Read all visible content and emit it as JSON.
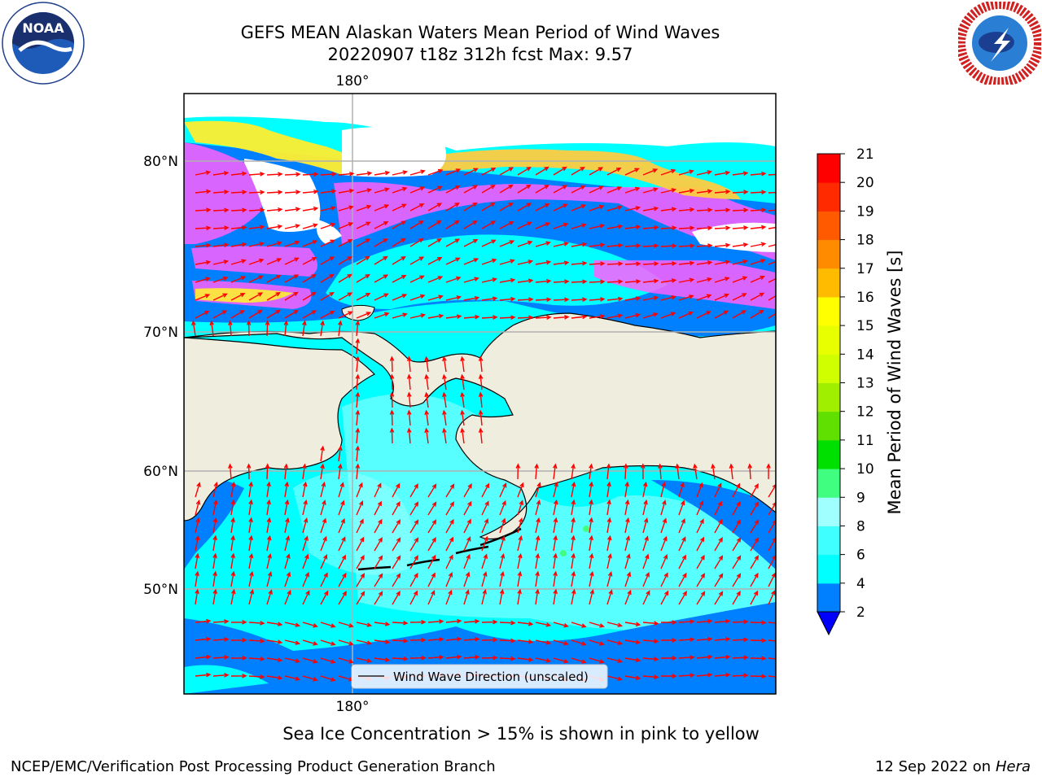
{
  "title_line1": "GEFS MEAN Alaskan Waters Mean Period of Wind Waves",
  "title_line2": "20220907 t18z 312h fcst   Max: 9.57",
  "map": {
    "lon_top_label": "180°",
    "lon_bottom_label": "180°",
    "lat_labels": [
      "80°N",
      "70°N",
      "60°N",
      "50°N"
    ],
    "legend_label": "Wind Wave Direction (unscaled)"
  },
  "colorbar": {
    "label": "Mean Period of Wind Waves [s]",
    "ticks": [
      "2",
      "4",
      "6",
      "8",
      "9",
      "10",
      "11",
      "12",
      "13",
      "14",
      "15",
      "16",
      "17",
      "18",
      "19",
      "20",
      "21"
    ],
    "colors": [
      "#0080ff",
      "#00ffff",
      "#40ffff",
      "#a0ffff",
      "#40ff80",
      "#00e000",
      "#60e000",
      "#a0ee00",
      "#d0ff00",
      "#e8ff00",
      "#ffff00",
      "#ffbb00",
      "#ff8c00",
      "#ff5a00",
      "#ff2a00",
      "#ff0000"
    ],
    "under_color": "#0000ff"
  },
  "colors": {
    "land": "#efedde",
    "ocean_low": "#0080ff",
    "ocean_mid": "#00ffff",
    "ocean_high": "#a0ffff",
    "ice_pink": "#ff60ff",
    "ice_yellow": "#ffee30",
    "arrow": "#ff0000"
  },
  "caption": "Sea Ice Concentration > 15% is shown in pink to yellow",
  "footer_left": "NCEP/EMC/Verification Post Processing Product Generation Branch",
  "footer_date": "12 Sep 2022 on",
  "footer_host": "Hera",
  "logos": {
    "left": "noaa-logo",
    "right": "nws-logo"
  }
}
